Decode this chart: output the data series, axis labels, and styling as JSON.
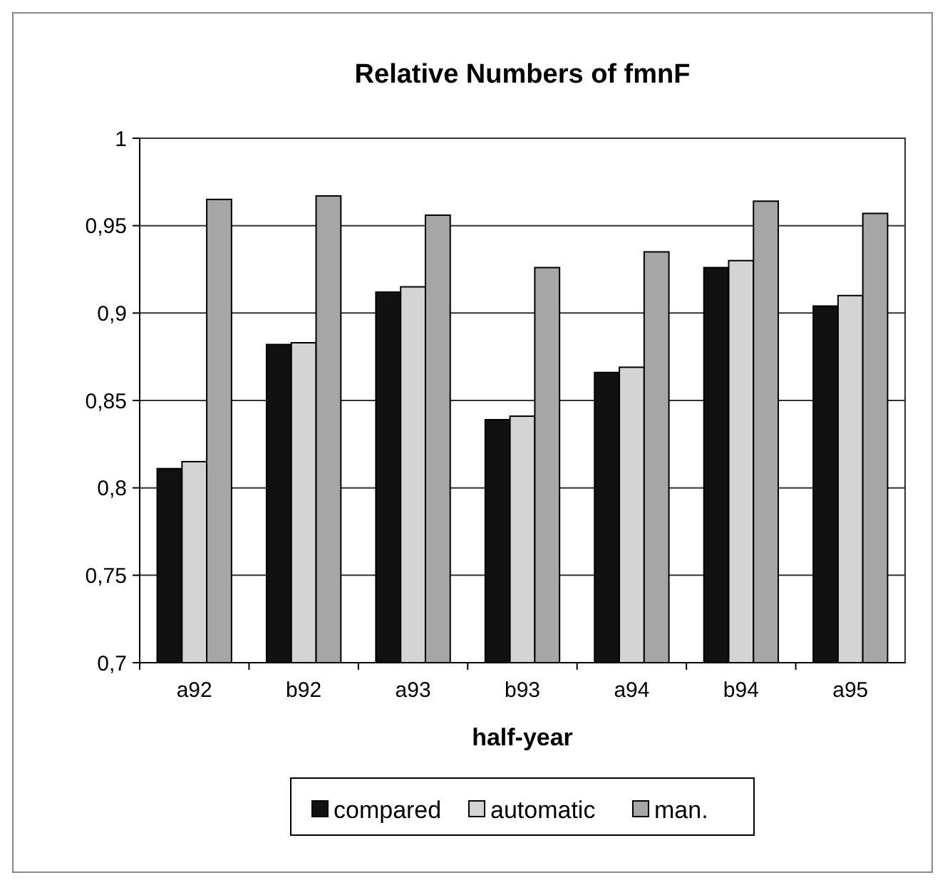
{
  "chart_data": {
    "type": "bar",
    "title": "Relative Numbers of fmnF",
    "xlabel": "half-year",
    "categories": [
      "a92",
      "b92",
      "a93",
      "b93",
      "a94",
      "b94",
      "a95"
    ],
    "series": [
      {
        "name": "compared",
        "color": "#111111",
        "values": [
          0.811,
          0.882,
          0.912,
          0.839,
          0.866,
          0.926,
          0.904
        ]
      },
      {
        "name": "automatic",
        "color": "#d4d4d4",
        "values": [
          0.815,
          0.883,
          0.915,
          0.841,
          0.869,
          0.93,
          0.91
        ]
      },
      {
        "name": "man.",
        "color": "#a6a6a6",
        "values": [
          0.965,
          0.967,
          0.956,
          0.926,
          0.935,
          0.964,
          0.957
        ]
      }
    ],
    "ylim": [
      0.7,
      1
    ],
    "yticks": [
      {
        "value": 0.7,
        "label": "0,7"
      },
      {
        "value": 0.75,
        "label": "0,75"
      },
      {
        "value": 0.8,
        "label": "0,8"
      },
      {
        "value": 0.85,
        "label": "0,85"
      },
      {
        "value": 0.9,
        "label": "0,9"
      },
      {
        "value": 0.95,
        "label": "0,95"
      },
      {
        "value": 1,
        "label": "1"
      }
    ],
    "grid": "y",
    "legend": "bottom"
  }
}
